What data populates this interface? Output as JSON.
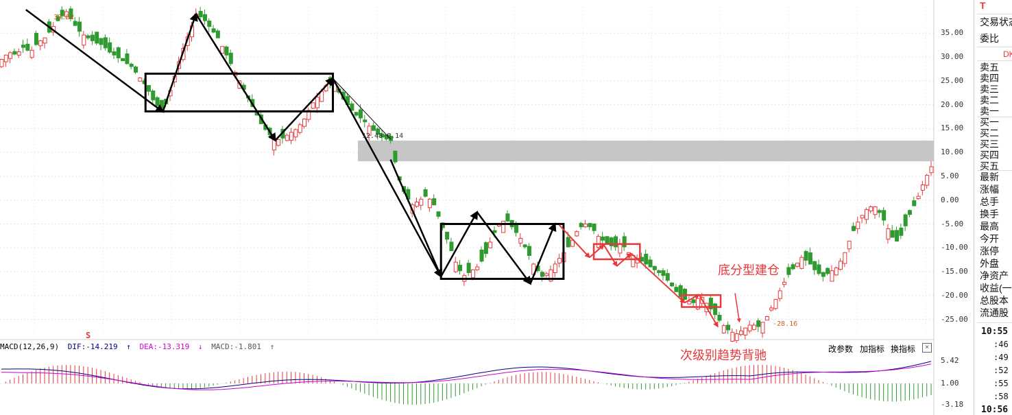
{
  "chart_data": [
    {
      "type": "candlestick",
      "title": "",
      "y_axis_ticks": [
        35,
        30,
        25,
        20,
        15,
        10,
        5,
        0,
        -5,
        -10,
        -15,
        -20,
        -25
      ],
      "ylim": [
        -28.5,
        40.5
      ],
      "price_labels": [
        "35.00",
        "30.00",
        "25.00",
        "20.00",
        "15.00",
        "10.00",
        "5.00",
        "0.00",
        "-5.00",
        "-10.00",
        "-15.00",
        "-20.00",
        "-25.00"
      ],
      "high_marker": "39.92",
      "gap_label": "12.48-8.14",
      "gap_zone": [
        8.14,
        12.48
      ],
      "low_marker": "-28.16",
      "signal_marker": "S",
      "ohlc_path": [
        [
          0,
          29.5
        ],
        [
          5,
          31
        ],
        [
          10,
          30.5
        ],
        [
          15,
          32
        ],
        [
          20,
          31
        ],
        [
          25,
          33
        ],
        [
          30,
          34
        ],
        [
          35,
          36
        ],
        [
          40,
          38
        ],
        [
          45,
          39.5
        ],
        [
          50,
          37
        ],
        [
          55,
          35
        ],
        [
          60,
          34
        ],
        [
          65,
          33
        ],
        [
          70,
          32.5
        ],
        [
          75,
          31
        ],
        [
          80,
          30
        ],
        [
          85,
          29
        ],
        [
          90,
          28
        ],
        [
          95,
          26
        ],
        [
          100,
          24
        ],
        [
          105,
          21
        ],
        [
          110,
          19
        ],
        [
          112,
          18.5
        ],
        [
          115,
          21
        ],
        [
          120,
          26
        ],
        [
          125,
          31
        ],
        [
          130,
          35
        ],
        [
          135,
          39
        ],
        [
          140,
          38
        ],
        [
          145,
          36
        ],
        [
          150,
          34
        ],
        [
          155,
          31
        ],
        [
          160,
          28
        ],
        [
          165,
          25
        ],
        [
          170,
          22
        ],
        [
          175,
          19
        ],
        [
          180,
          16
        ],
        [
          185,
          14
        ],
        [
          190,
          12.5
        ],
        [
          195,
          13
        ],
        [
          200,
          14
        ],
        [
          205,
          15
        ],
        [
          210,
          17
        ],
        [
          215,
          20
        ],
        [
          220,
          22
        ],
        [
          225,
          24
        ],
        [
          230,
          25
        ],
        [
          235,
          22
        ],
        [
          240,
          20
        ],
        [
          245,
          18
        ],
        [
          250,
          17
        ],
        [
          255,
          15.5
        ],
        [
          260,
          14
        ],
        [
          265,
          13
        ],
        [
          270,
          12.48
        ],
        [
          275,
          5
        ],
        [
          280,
          1
        ],
        [
          285,
          -1
        ],
        [
          290,
          0
        ],
        [
          295,
          1
        ],
        [
          300,
          -1
        ],
        [
          305,
          -5
        ],
        [
          310,
          -9
        ],
        [
          315,
          -13
        ],
        [
          320,
          -16
        ],
        [
          325,
          -15
        ],
        [
          330,
          -14
        ],
        [
          335,
          -12
        ],
        [
          340,
          -8
        ],
        [
          345,
          -5
        ],
        [
          350,
          -4
        ],
        [
          355,
          -6
        ],
        [
          360,
          -8
        ],
        [
          365,
          -11
        ],
        [
          370,
          -14
        ],
        [
          375,
          -16
        ],
        [
          380,
          -15
        ],
        [
          385,
          -13
        ],
        [
          390,
          -11
        ],
        [
          395,
          -9
        ],
        [
          400,
          -6
        ],
        [
          405,
          -5
        ],
        [
          410,
          -6
        ],
        [
          415,
          -8
        ],
        [
          420,
          -9
        ],
        [
          425,
          -10
        ],
        [
          430,
          -9
        ],
        [
          435,
          -11
        ],
        [
          440,
          -12
        ],
        [
          445,
          -13
        ],
        [
          450,
          -14
        ],
        [
          455,
          -15
        ],
        [
          460,
          -16
        ],
        [
          465,
          -18
        ],
        [
          470,
          -20
        ],
        [
          475,
          -21
        ],
        [
          480,
          -21.5
        ],
        [
          485,
          -20
        ],
        [
          490,
          -22
        ],
        [
          495,
          -24
        ],
        [
          500,
          -26
        ],
        [
          505,
          -27.5
        ],
        [
          510,
          -28
        ],
        [
          515,
          -27
        ],
        [
          520,
          -26
        ],
        [
          525,
          -26.5
        ],
        [
          530,
          -25
        ],
        [
          535,
          -22
        ],
        [
          540,
          -19
        ],
        [
          545,
          -16
        ],
        [
          550,
          -14
        ],
        [
          555,
          -12
        ],
        [
          560,
          -13
        ],
        [
          565,
          -15
        ],
        [
          570,
          -16
        ],
        [
          575,
          -15
        ],
        [
          580,
          -14
        ],
        [
          585,
          -11
        ],
        [
          590,
          -7
        ],
        [
          595,
          -4
        ],
        [
          600,
          -2
        ],
        [
          605,
          -1
        ],
        [
          610,
          -3
        ],
        [
          615,
          -6
        ],
        [
          620,
          -9
        ],
        [
          625,
          -7
        ],
        [
          630,
          -3
        ],
        [
          635,
          0
        ],
        [
          640,
          4
        ],
        [
          645,
          7
        ]
      ]
    },
    {
      "type": "macd",
      "label": "MACD(12,26,9)",
      "dif": "DIF:-14.219",
      "dea": "DEA:-13.319",
      "macd": "MACD:-1.801",
      "ticks": [
        "5.42",
        "1.00",
        "-3.18"
      ],
      "ylim": [
        -4.5,
        6.5
      ]
    }
  ],
  "annotations": {
    "bottom_fractal": "底分型建仓",
    "divergence": "次级别趋势背驰"
  },
  "toolbar": {
    "change_params": "改参数",
    "add_indicator": "加指标",
    "switch_indicator": "换指标",
    "close": "×"
  },
  "side_panel": {
    "top_red": "T",
    "status": "交易状态",
    "ratio": "委比",
    "red_tag": "DK",
    "sell_rows": [
      "卖五",
      "卖四",
      "卖三",
      "卖二",
      "卖一"
    ],
    "buy_rows": [
      "买一",
      "买二",
      "买三",
      "买四",
      "买五"
    ],
    "stats": [
      "最新",
      "涨幅",
      "总手",
      "换手",
      "最高",
      "今开",
      "涨停",
      "外盘",
      "净资产",
      "收益(一)",
      "总股本",
      "流通股"
    ],
    "times": [
      {
        "t": "10:55",
        "bold": true
      },
      {
        "t": ":46",
        "bold": false
      },
      {
        "t": ":49",
        "bold": false
      },
      {
        "t": ":52",
        "bold": false
      },
      {
        "t": ":55",
        "bold": false
      },
      {
        "t": ":58",
        "bold": false
      },
      {
        "t": "10:56",
        "bold": true
      }
    ]
  },
  "colors": {
    "up": "#e8383a",
    "down": "#2f9a2f",
    "annotation": "#e8383a",
    "box": "#000000",
    "gap_fill": "#c0c0c0",
    "dif_line": "#000080",
    "dea_line": "#d000d0"
  }
}
